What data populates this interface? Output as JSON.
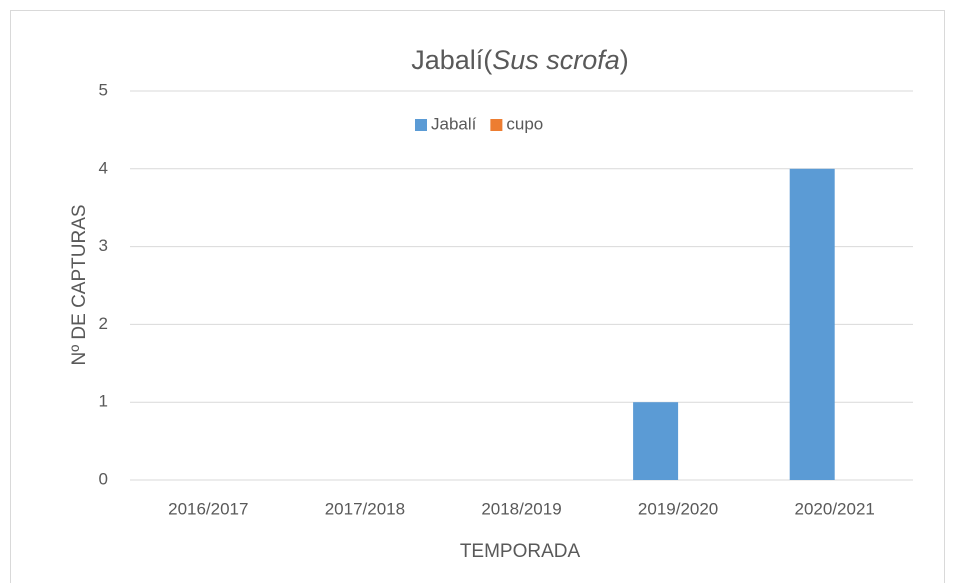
{
  "chart_data": {
    "type": "bar",
    "title": [
      "Jabalí(",
      "Sus scrofa",
      ")"
    ],
    "title_color": "#ff0000",
    "x_label": "TEMPORADA",
    "y_label": "Nº DE CAPTURAS",
    "categories": [
      "2016/2017",
      "2017/2018",
      "2018/2019",
      "2019/2020",
      "2020/2021"
    ],
    "series": [
      {
        "name": "Jabalí",
        "color": "#5b9bd5",
        "values": [
          0,
          0,
          0,
          1,
          4
        ]
      },
      {
        "name": "cupo",
        "color": "#ed7d31",
        "values": [
          0,
          0,
          0,
          0,
          0
        ]
      }
    ],
    "ylim": [
      0,
      5
    ],
    "yticks": [
      0,
      1,
      2,
      3,
      4,
      5
    ],
    "grid": true,
    "legend": "top"
  }
}
